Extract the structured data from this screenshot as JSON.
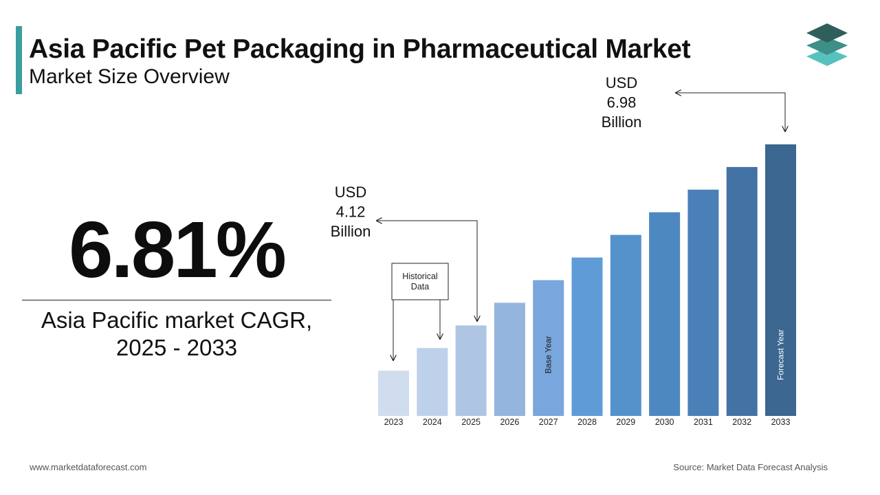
{
  "header": {
    "title": "Asia Pacific Pet Packaging in Pharmaceutical Market",
    "subtitle": "Market Size Overview"
  },
  "cagr": {
    "value": "6.81%",
    "label_line1": "Asia Pacific market CAGR,",
    "label_line2": "2025 - 2033"
  },
  "footer": {
    "website": "www.marketdataforecast.com",
    "source": "Source: Market Data Forecast Analysis"
  },
  "colors": {
    "accent": "#3a9e9e",
    "logo_top": "#2f5f5c",
    "logo_mid": "#3d8f88",
    "logo_bottom": "#56c2bf"
  },
  "chart_data": {
    "type": "bar",
    "categories": [
      "2023",
      "2024",
      "2025",
      "2026",
      "2027",
      "2028",
      "2029",
      "2030",
      "2031",
      "2032",
      "2033"
    ],
    "values": [
      2.0,
      3.0,
      4.0,
      5.0,
      6.0,
      7.0,
      8.0,
      9.0,
      10.0,
      11.0,
      12.0
    ],
    "value_note": "Bars increase uniformly; no y-axis printed.",
    "bar_colors": [
      "#d0ddef",
      "#bed1ea",
      "#aec6e4",
      "#94b5de",
      "#79a6dc",
      "#5f9bd7",
      "#5592cc",
      "#4e88c0",
      "#4a80b7",
      "#4373a5",
      "#3b6790"
    ],
    "ylim": [
      0,
      12.5
    ],
    "annotations": {
      "historical_data": "Historical Data",
      "base_year": "Base Year",
      "base_year_category": "2027",
      "forecast_year": "Forecast Year",
      "forecast_year_category": "2033",
      "callout_2025": [
        "USD",
        "4.12",
        "Billion"
      ],
      "callout_2033": [
        "USD",
        "6.98",
        "Billion"
      ]
    }
  }
}
